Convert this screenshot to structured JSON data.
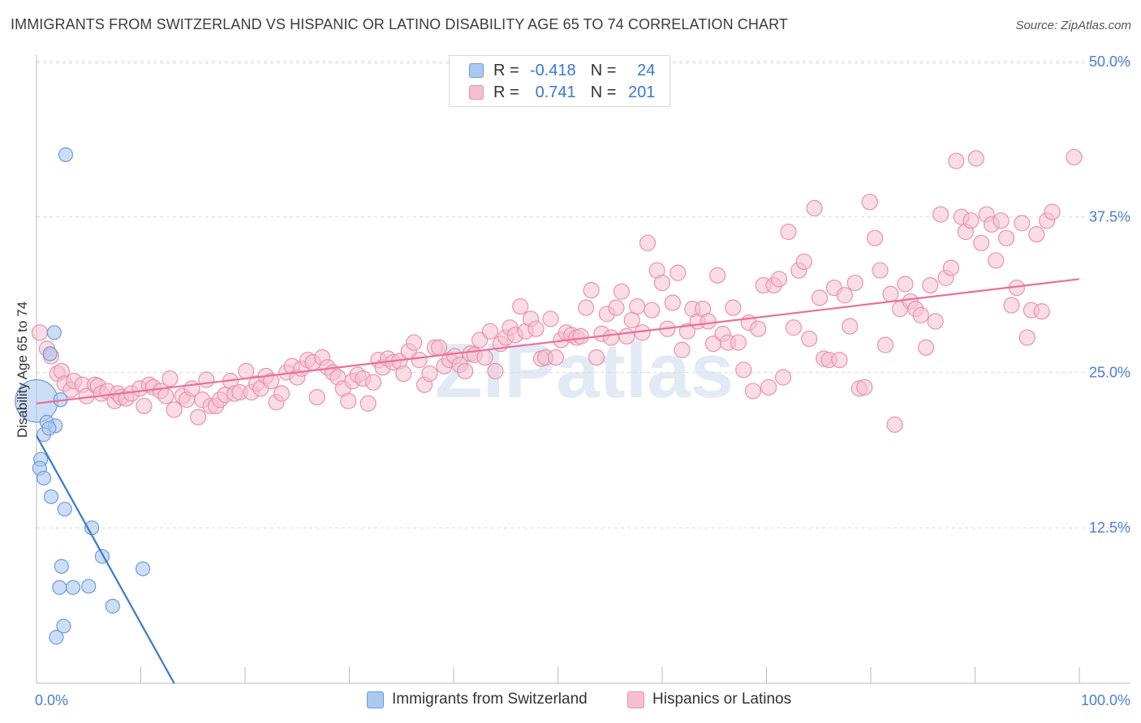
{
  "title": "IMMIGRANTS FROM SWITZERLAND VS HISPANIC OR LATINO DISABILITY AGE 65 TO 74 CORRELATION CHART",
  "source": "Source: ZipAtlas.com",
  "watermark": "ZIPatlas",
  "colors": {
    "blue_fill": "#aac8f0",
    "blue_stroke": "#6f9bd8",
    "blue_line": "#3a78d0",
    "pink_fill": "#f5bfd0",
    "pink_stroke": "#e892ad",
    "pink_line": "#e8709a",
    "accent_text": "#3a78d0"
  },
  "legend": {
    "rows": [
      {
        "r_label": "R =",
        "r_value": "-0.418",
        "n_label": "N =",
        "n_value": "24"
      },
      {
        "r_label": "R =",
        "r_value": "0.741",
        "n_label": "N =",
        "n_value": "201"
      }
    ]
  },
  "bottom_legend": [
    "Immigrants from Switzerland",
    "Hispanics or Latinos"
  ],
  "chart_data": {
    "type": "scatter",
    "title": "IMMIGRANTS FROM SWITZERLAND VS HISPANIC OR LATINO DISABILITY AGE 65 TO 74 CORRELATION CHART",
    "xlabel": "",
    "ylabel": "Disability Age 65 to 74",
    "x_tick_labels": [
      "0.0%",
      "100.0%"
    ],
    "y_tick_labels": [
      "12.5%",
      "25.0%",
      "37.5%",
      "50.0%"
    ],
    "y_ticks": [
      12.5,
      25.0,
      37.5,
      50.0
    ],
    "xlim": [
      0,
      100
    ],
    "ylim": [
      0,
      50.9
    ],
    "grid": "horizontal dashed",
    "series": [
      {
        "name": "Immigrants from Switzerland",
        "color": "#aac8f0",
        "trend": {
          "x": [
            0.0,
            13.2
          ],
          "y": [
            19.9,
            0.0
          ]
        },
        "points": [
          [
            0.0,
            22.7,
            2.2
          ],
          [
            2.8,
            42.5,
            1
          ],
          [
            1.7,
            28.2,
            1
          ],
          [
            1.3,
            26.5,
            1
          ],
          [
            2.3,
            22.8,
            1
          ],
          [
            1.0,
            21.0,
            1
          ],
          [
            1.8,
            20.7,
            1
          ],
          [
            0.7,
            20.0,
            1
          ],
          [
            0.4,
            18.0,
            1
          ],
          [
            0.3,
            17.3,
            1
          ],
          [
            0.7,
            16.5,
            1
          ],
          [
            1.4,
            15.0,
            1
          ],
          [
            2.7,
            14.0,
            1
          ],
          [
            5.3,
            12.5,
            1
          ],
          [
            6.3,
            10.2,
            1
          ],
          [
            2.4,
            9.4,
            1
          ],
          [
            10.2,
            9.2,
            1
          ],
          [
            2.2,
            7.7,
            1
          ],
          [
            3.5,
            7.7,
            1
          ],
          [
            5.0,
            7.8,
            1
          ],
          [
            7.3,
            6.2,
            1
          ],
          [
            2.6,
            4.6,
            1
          ],
          [
            1.9,
            3.7,
            1
          ],
          [
            1.2,
            20.5,
            1
          ]
        ]
      },
      {
        "name": "Hispanics or Latinos",
        "color": "#f5bfd0",
        "trend": {
          "x": [
            0.0,
            100.0
          ],
          "y": [
            22.5,
            32.5
          ]
        },
        "points": [
          [
            0.3,
            28.2
          ],
          [
            1.0,
            26.9
          ],
          [
            1.4,
            26.3
          ],
          [
            2.0,
            24.9
          ],
          [
            2.4,
            25.1
          ],
          [
            2.7,
            24.1
          ],
          [
            3.3,
            23.6
          ],
          [
            3.6,
            24.3
          ],
          [
            4.4,
            24.0
          ],
          [
            4.8,
            23.1
          ],
          [
            5.6,
            24.0
          ],
          [
            5.9,
            23.9
          ],
          [
            6.2,
            23.3
          ],
          [
            6.8,
            23.5
          ],
          [
            7.5,
            22.7
          ],
          [
            7.8,
            23.3
          ],
          [
            8.1,
            23.0
          ],
          [
            8.6,
            22.9
          ],
          [
            9.1,
            23.3
          ],
          [
            9.9,
            23.7
          ],
          [
            10.3,
            22.3
          ],
          [
            10.8,
            24.0
          ],
          [
            11.2,
            23.8
          ],
          [
            11.9,
            23.5
          ],
          [
            12.4,
            23.1
          ],
          [
            12.8,
            24.5
          ],
          [
            13.2,
            22.0
          ],
          [
            14.0,
            23.1
          ],
          [
            14.4,
            22.8
          ],
          [
            14.9,
            23.7
          ],
          [
            15.5,
            21.4
          ],
          [
            15.9,
            22.8
          ],
          [
            16.3,
            24.4
          ],
          [
            16.7,
            22.3
          ],
          [
            17.2,
            22.3
          ],
          [
            17.6,
            22.8
          ],
          [
            18.1,
            23.2
          ],
          [
            18.6,
            24.3
          ],
          [
            19.0,
            23.3
          ],
          [
            19.5,
            23.4
          ],
          [
            20.1,
            25.1
          ],
          [
            20.6,
            23.4
          ],
          [
            21.1,
            24.1
          ],
          [
            21.5,
            23.7
          ],
          [
            22.0,
            24.7
          ],
          [
            22.5,
            24.3
          ],
          [
            23.0,
            22.6
          ],
          [
            23.5,
            23.3
          ],
          [
            24.0,
            25.0
          ],
          [
            24.5,
            25.5
          ],
          [
            25.0,
            24.6
          ],
          [
            25.4,
            25.3
          ],
          [
            26.0,
            26.0
          ],
          [
            26.5,
            25.8
          ],
          [
            26.9,
            23.0
          ],
          [
            27.4,
            26.2
          ],
          [
            27.9,
            25.4
          ],
          [
            28.4,
            25.0
          ],
          [
            28.9,
            24.6
          ],
          [
            29.4,
            23.7
          ],
          [
            29.9,
            22.7
          ],
          [
            30.3,
            24.3
          ],
          [
            30.8,
            24.8
          ],
          [
            31.3,
            24.5
          ],
          [
            31.8,
            22.5
          ],
          [
            32.3,
            24.2
          ],
          [
            32.8,
            26.0
          ],
          [
            33.2,
            25.4
          ],
          [
            33.7,
            26.1
          ],
          [
            34.2,
            25.8
          ],
          [
            34.8,
            25.9
          ],
          [
            35.2,
            24.9
          ],
          [
            35.7,
            26.7
          ],
          [
            36.2,
            27.4
          ],
          [
            36.7,
            26.0
          ],
          [
            37.2,
            24.0
          ],
          [
            37.7,
            24.9
          ],
          [
            38.2,
            27.0
          ],
          [
            38.6,
            27.0
          ],
          [
            39.1,
            25.5
          ],
          [
            39.6,
            26.0
          ],
          [
            40.1,
            26.3
          ],
          [
            40.6,
            25.6
          ],
          [
            41.1,
            25.1
          ],
          [
            41.6,
            26.5
          ],
          [
            42.0,
            26.4
          ],
          [
            42.5,
            27.6
          ],
          [
            43.0,
            26.2
          ],
          [
            43.5,
            28.3
          ],
          [
            44.0,
            25.1
          ],
          [
            44.5,
            27.3
          ],
          [
            45.0,
            27.8
          ],
          [
            45.4,
            28.6
          ],
          [
            45.9,
            28.0
          ],
          [
            46.4,
            30.3
          ],
          [
            46.9,
            28.3
          ],
          [
            47.4,
            29.3
          ],
          [
            47.9,
            28.5
          ],
          [
            48.4,
            26.1
          ],
          [
            48.8,
            26.2
          ],
          [
            49.3,
            29.3
          ],
          [
            49.8,
            26.2
          ],
          [
            50.3,
            27.6
          ],
          [
            50.8,
            28.2
          ],
          [
            51.3,
            28.0
          ],
          [
            51.8,
            27.8
          ],
          [
            52.2,
            27.9
          ],
          [
            52.7,
            30.2
          ],
          [
            53.2,
            31.6
          ],
          [
            53.7,
            26.2
          ],
          [
            54.2,
            28.1
          ],
          [
            54.7,
            29.7
          ],
          [
            55.1,
            27.8
          ],
          [
            55.6,
            30.2
          ],
          [
            56.1,
            31.5
          ],
          [
            56.6,
            27.9
          ],
          [
            57.1,
            29.2
          ],
          [
            57.6,
            30.3
          ],
          [
            58.1,
            28.2
          ],
          [
            58.6,
            35.4
          ],
          [
            59.0,
            30.0
          ],
          [
            59.5,
            33.2
          ],
          [
            60.0,
            32.2
          ],
          [
            60.5,
            28.5
          ],
          [
            61.0,
            30.6
          ],
          [
            61.5,
            33.0
          ],
          [
            61.9,
            26.8
          ],
          [
            62.4,
            28.3
          ],
          [
            62.9,
            30.1
          ],
          [
            63.4,
            29.1
          ],
          [
            63.9,
            30.1
          ],
          [
            64.4,
            29.1
          ],
          [
            64.9,
            27.3
          ],
          [
            65.3,
            32.8
          ],
          [
            65.8,
            28.1
          ],
          [
            66.3,
            27.4
          ],
          [
            66.8,
            30.2
          ],
          [
            67.3,
            27.4
          ],
          [
            67.8,
            25.2
          ],
          [
            68.3,
            29.0
          ],
          [
            68.7,
            23.5
          ],
          [
            69.2,
            28.5
          ],
          [
            69.7,
            32.0
          ],
          [
            70.2,
            23.8
          ],
          [
            70.7,
            32.0
          ],
          [
            71.2,
            32.5
          ],
          [
            71.6,
            24.6
          ],
          [
            72.1,
            36.3
          ],
          [
            72.6,
            28.6
          ],
          [
            73.1,
            33.2
          ],
          [
            73.6,
            33.9
          ],
          [
            74.1,
            27.7
          ],
          [
            74.6,
            38.2
          ],
          [
            75.1,
            31.0
          ],
          [
            75.5,
            26.1
          ],
          [
            76.0,
            26.0
          ],
          [
            76.5,
            31.8
          ],
          [
            77.0,
            26.0
          ],
          [
            77.5,
            31.2
          ],
          [
            78.0,
            28.7
          ],
          [
            78.5,
            32.2
          ],
          [
            78.9,
            23.7
          ],
          [
            79.4,
            23.8
          ],
          [
            79.9,
            38.7
          ],
          [
            80.4,
            35.8
          ],
          [
            80.9,
            33.2
          ],
          [
            81.4,
            27.2
          ],
          [
            81.9,
            31.3
          ],
          [
            82.3,
            20.8
          ],
          [
            82.8,
            30.1
          ],
          [
            83.3,
            32.1
          ],
          [
            83.8,
            30.7
          ],
          [
            84.3,
            30.1
          ],
          [
            84.8,
            29.6
          ],
          [
            85.3,
            27.0
          ],
          [
            85.7,
            32.0
          ],
          [
            86.2,
            29.1
          ],
          [
            86.7,
            37.7
          ],
          [
            87.2,
            32.6
          ],
          [
            87.7,
            33.4
          ],
          [
            88.2,
            42.0
          ],
          [
            88.7,
            37.5
          ],
          [
            89.1,
            36.3
          ],
          [
            89.6,
            37.2
          ],
          [
            90.1,
            42.2
          ],
          [
            90.6,
            35.4
          ],
          [
            91.1,
            37.7
          ],
          [
            91.6,
            36.9
          ],
          [
            92.0,
            34.0
          ],
          [
            92.5,
            37.2
          ],
          [
            93.0,
            35.8
          ],
          [
            93.5,
            30.4
          ],
          [
            94.0,
            31.8
          ],
          [
            94.5,
            37.0
          ],
          [
            95.0,
            27.8
          ],
          [
            95.4,
            30.0
          ],
          [
            95.9,
            36.1
          ],
          [
            96.4,
            29.9
          ],
          [
            96.9,
            37.2
          ],
          [
            97.4,
            37.9
          ],
          [
            99.5,
            42.3
          ]
        ]
      }
    ]
  }
}
